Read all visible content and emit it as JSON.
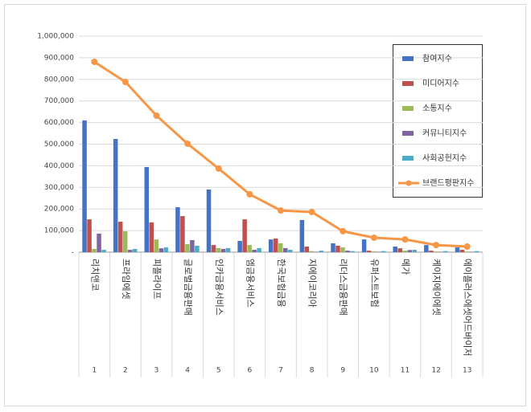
{
  "chart_data": {
    "type": "bar",
    "categories": [
      "리치앤코",
      "프라임에셋",
      "피플라이프",
      "글로벌금융판매",
      "인카금융서비스",
      "엠금융서비스",
      "한국보험금융",
      "지에이코리아",
      "리더스금융판매",
      "유퍼스트보험",
      "메가",
      "케이지에이에셋",
      "에이플러스에셋어드바이저"
    ],
    "ranks": [
      1,
      2,
      3,
      4,
      5,
      6,
      7,
      8,
      9,
      10,
      11,
      12,
      13
    ],
    "ylim": [
      0,
      1000000
    ],
    "yticks": [
      {
        "value": 0,
        "label": "-"
      },
      {
        "value": 100000,
        "label": "100,000"
      },
      {
        "value": 200000,
        "label": "200,000"
      },
      {
        "value": 300000,
        "label": "300,000"
      },
      {
        "value": 400000,
        "label": "400,000"
      },
      {
        "value": 500000,
        "label": "500,000"
      },
      {
        "value": 600000,
        "label": "600,000"
      },
      {
        "value": 700000,
        "label": "700,000"
      },
      {
        "value": 800000,
        "label": "800,000"
      },
      {
        "value": 900000,
        "label": "900,000"
      },
      {
        "value": 1000000,
        "label": "1,000,000"
      }
    ],
    "grid": true,
    "legend": "right",
    "series": [
      {
        "name": "참여지수",
        "color": "#4472c4",
        "values": [
          610000,
          524000,
          394000,
          208000,
          290000,
          52000,
          59000,
          149000,
          41000,
          59000,
          26000,
          33000,
          22000
        ]
      },
      {
        "name": "미디어지수",
        "color": "#c0504d",
        "values": [
          152000,
          141000,
          138000,
          167000,
          33000,
          152000,
          63000,
          26000,
          30000,
          7000,
          18000,
          7000,
          11000
        ]
      },
      {
        "name": "소통지수",
        "color": "#9bbb59",
        "values": [
          15000,
          97000,
          59000,
          37000,
          19000,
          33000,
          41000,
          5000,
          22000,
          4000,
          7000,
          3000,
          3000
        ]
      },
      {
        "name": "커뮤니티지수",
        "color": "#8064a2",
        "values": [
          86000,
          11000,
          18000,
          56000,
          15000,
          11000,
          19000,
          2000,
          7000,
          2000,
          10000,
          2000,
          2000
        ]
      },
      {
        "name": "사회공헌지수",
        "color": "#4bacc6",
        "values": [
          11000,
          15000,
          22000,
          30000,
          19000,
          19000,
          11000,
          7000,
          5000,
          5000,
          11000,
          5000,
          5000
        ]
      },
      {
        "name": "브랜드평판지수",
        "color": "#f79646",
        "type": "line",
        "values": [
          881000,
          788000,
          632000,
          502000,
          387000,
          268000,
          193000,
          186000,
          97000,
          67000,
          59000,
          33000,
          26000
        ]
      }
    ]
  }
}
